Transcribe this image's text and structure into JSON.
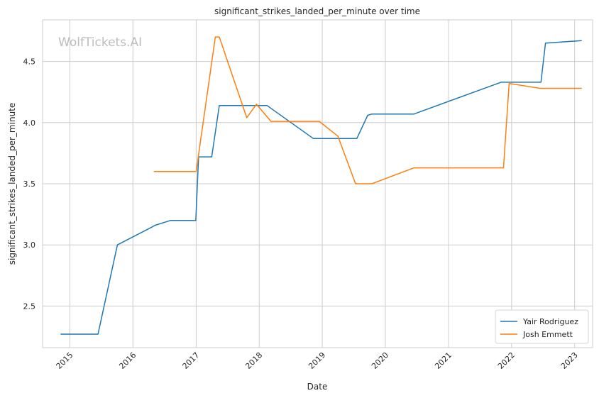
{
  "chart_data": {
    "type": "line",
    "title": "significant_strikes_landed_per_minute over time",
    "xlabel": "Date",
    "ylabel": "significant_strikes_landed_per_minute",
    "watermark": "WolfTickets.AI",
    "x_ticks": [
      "2015",
      "2016",
      "2017",
      "2018",
      "2019",
      "2020",
      "2021",
      "2022",
      "2023"
    ],
    "y_ticks": [
      "2.5",
      "3.0",
      "3.5",
      "4.0",
      "4.5"
    ],
    "xlim": [
      "2014-07-27",
      "2023-04-15"
    ],
    "ylim": [
      2.16,
      4.84
    ],
    "grid": true,
    "legend_position": "lower-right",
    "series": [
      {
        "name": "Yair Rodriguez",
        "color": "#1f77b4",
        "points": [
          [
            "2014-11-08",
            2.27
          ],
          [
            "2015-06-13",
            2.27
          ],
          [
            "2015-10-03",
            3.0
          ],
          [
            "2016-04-26",
            3.15
          ],
          [
            "2016-05-07",
            3.16
          ],
          [
            "2016-08-06",
            3.2
          ],
          [
            "2016-12-30",
            3.2
          ],
          [
            "2017-01-15",
            3.72
          ],
          [
            "2017-04-01",
            3.72
          ],
          [
            "2017-05-15",
            4.14
          ],
          [
            "2018-02-15",
            4.14
          ],
          [
            "2018-11-10",
            3.87
          ],
          [
            "2019-07-20",
            3.87
          ],
          [
            "2019-09-21",
            4.06
          ],
          [
            "2019-10-15",
            4.07
          ],
          [
            "2020-06-15",
            4.07
          ],
          [
            "2021-11-01",
            4.33
          ],
          [
            "2022-06-20",
            4.33
          ],
          [
            "2022-07-16",
            4.65
          ],
          [
            "2023-02-11",
            4.67
          ]
        ]
      },
      {
        "name": "Josh Emmett",
        "color": "#ff7f0e",
        "points": [
          [
            "2016-05-01",
            3.6
          ],
          [
            "2017-01-01",
            3.6
          ],
          [
            "2017-04-22",
            4.7
          ],
          [
            "2017-05-15",
            4.7
          ],
          [
            "2017-10-21",
            4.04
          ],
          [
            "2017-12-16",
            4.15
          ],
          [
            "2018-03-10",
            4.01
          ],
          [
            "2018-12-15",
            4.01
          ],
          [
            "2019-04-01",
            3.89
          ],
          [
            "2019-07-13",
            3.5
          ],
          [
            "2019-10-15",
            3.5
          ],
          [
            "2020-06-15",
            3.63
          ],
          [
            "2021-11-15",
            3.63
          ],
          [
            "2021-12-18",
            4.32
          ],
          [
            "2022-06-15",
            4.28
          ],
          [
            "2023-02-11",
            4.28
          ]
        ]
      }
    ]
  }
}
